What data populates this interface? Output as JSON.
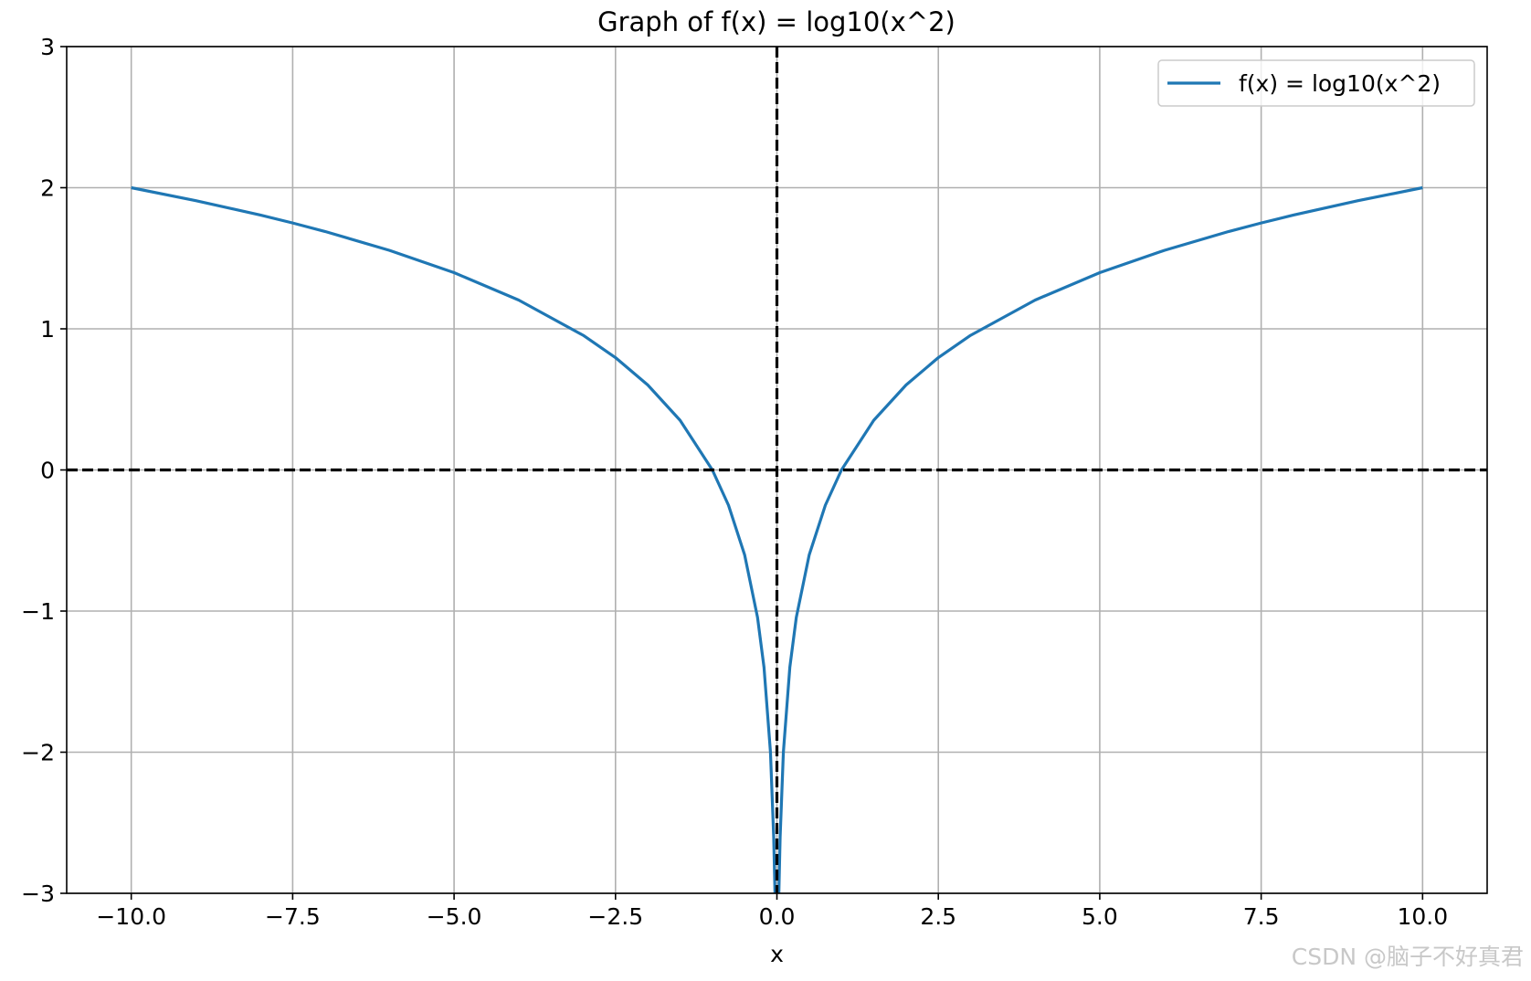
{
  "chart_data": {
    "type": "line",
    "title": "Graph of f(x) = log10(x^2)",
    "xlabel": "x",
    "ylabel": "",
    "xlim": [
      -11,
      11
    ],
    "ylim": [
      -3,
      3
    ],
    "x_ticks": [
      -10.0,
      -7.5,
      -5.0,
      -2.5,
      0.0,
      2.5,
      5.0,
      7.5,
      10.0
    ],
    "x_tick_labels": [
      "−10.0",
      "−7.5",
      "−5.0",
      "−2.5",
      "0.0",
      "2.5",
      "5.0",
      "7.5",
      "10.0"
    ],
    "y_ticks": [
      -3,
      -2,
      -1,
      0,
      1,
      2,
      3
    ],
    "y_tick_labels": [
      "−3",
      "−2",
      "−1",
      "0",
      "1",
      "2",
      "3"
    ],
    "grid": true,
    "legend_position": "top-right",
    "series": [
      {
        "name": "f(x) = log10(x^2)",
        "color": "#1f77b4",
        "x": [
          -10,
          -9,
          -8,
          -7.5,
          -7,
          -6,
          -5,
          -4,
          -3,
          -2.5,
          -2,
          -1.5,
          -1,
          -0.75,
          -0.5,
          -0.3,
          -0.2,
          -0.1,
          -0.05,
          -0.03,
          0.03,
          0.05,
          0.1,
          0.2,
          0.3,
          0.5,
          0.75,
          1,
          1.5,
          2,
          2.5,
          3,
          4,
          5,
          6,
          7,
          7.5,
          8,
          9,
          10
        ],
        "y": [
          2.0,
          1.908,
          1.806,
          1.75,
          1.69,
          1.556,
          1.398,
          1.204,
          0.954,
          0.796,
          0.602,
          0.352,
          0.0,
          -0.25,
          -0.602,
          -1.046,
          -1.398,
          -2.0,
          -2.602,
          -3.0,
          -3.0,
          -2.602,
          -2.0,
          -1.398,
          -1.046,
          -0.602,
          -0.25,
          0.0,
          0.352,
          0.602,
          0.796,
          0.954,
          1.204,
          1.398,
          1.556,
          1.69,
          1.75,
          1.806,
          1.908,
          2.0
        ]
      }
    ],
    "reference_lines": [
      {
        "orientation": "horizontal",
        "value": 0,
        "style": "dashed",
        "color": "#000000"
      },
      {
        "orientation": "vertical",
        "value": 0,
        "style": "dashed",
        "color": "#000000"
      }
    ],
    "colors": {
      "grid": "#b0b0b0",
      "axes": "#000000",
      "line": "#1f77b4"
    }
  },
  "watermark": "CSDN @脑子不好真君"
}
